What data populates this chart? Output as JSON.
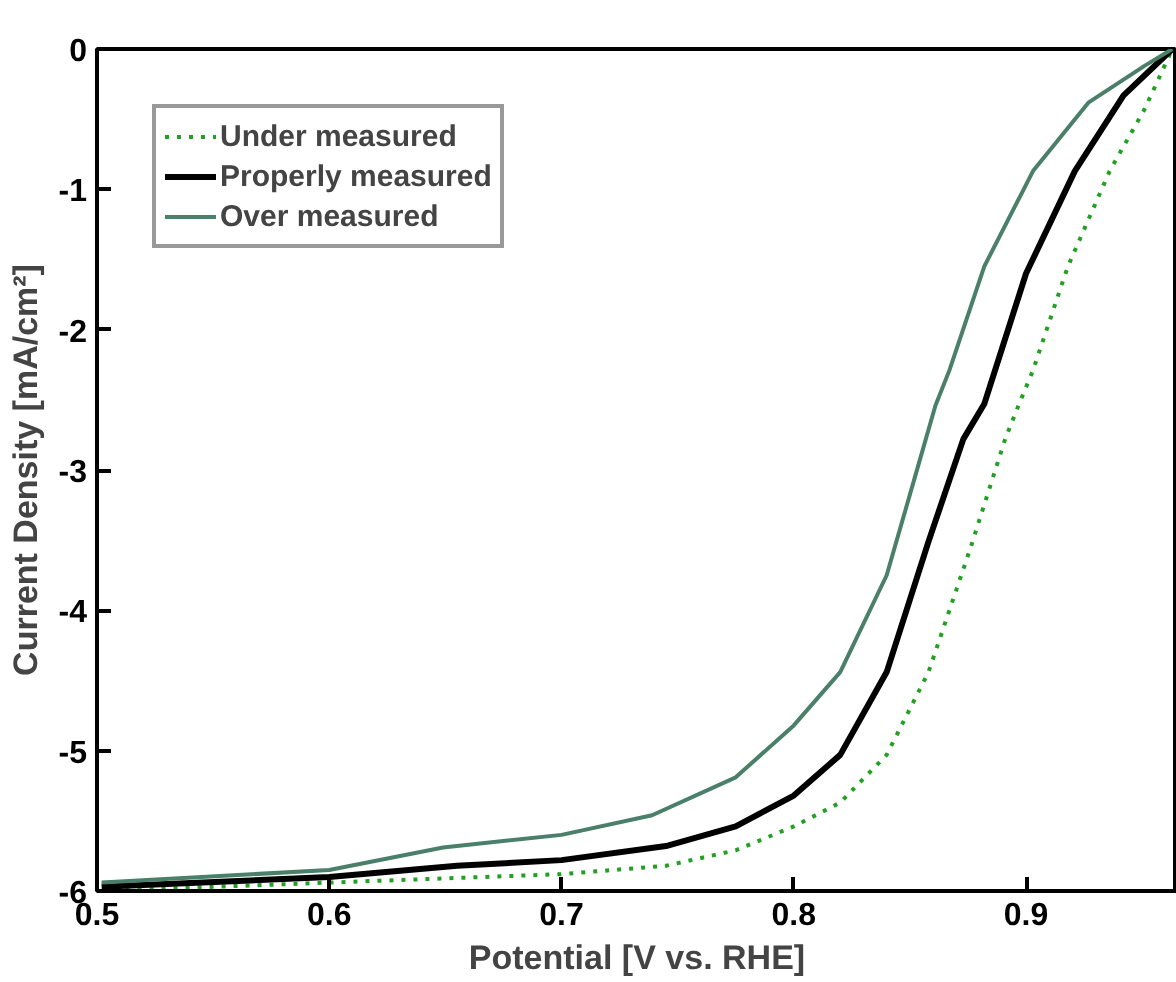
{
  "chart_data": {
    "type": "line",
    "xlabel": "Potential [V vs. RHE]",
    "ylabel": "Current Density [mA/cm²]",
    "xlim": [
      0.5,
      0.965
    ],
    "ylim": [
      -6,
      0
    ],
    "xticks": [
      0.5,
      0.6,
      0.7,
      0.8,
      0.9
    ],
    "yticks": [
      -6,
      -5,
      -4,
      -3,
      -2,
      -1,
      0
    ],
    "grid": false,
    "legend": "top left",
    "marker": "none",
    "series": [
      {
        "name": "Under measured",
        "color": "#22a022",
        "line_style": "dotted",
        "x": [
          0.502,
          0.6,
          0.7,
          0.745,
          0.775,
          0.8,
          0.82,
          0.84,
          0.858,
          0.876,
          0.891,
          0.897,
          0.903,
          0.918,
          0.936,
          0.951,
          0.963
        ],
        "values": [
          -6.0,
          -5.94,
          -5.88,
          -5.82,
          -5.71,
          -5.54,
          -5.37,
          -5.03,
          -4.44,
          -3.56,
          -2.78,
          -2.53,
          -2.29,
          -1.55,
          -0.87,
          -0.43,
          0
        ]
      },
      {
        "name": "Properly measured",
        "color": "#000000",
        "line_style": "solid",
        "x": [
          0.502,
          0.6,
          0.655,
          0.7,
          0.745,
          0.775,
          0.8,
          0.82,
          0.84,
          0.858,
          0.873,
          0.882,
          0.9,
          0.921,
          0.942,
          0.963
        ],
        "values": [
          -5.97,
          -5.9,
          -5.82,
          -5.78,
          -5.68,
          -5.54,
          -5.32,
          -5.03,
          -4.44,
          -3.51,
          -2.78,
          -2.53,
          -1.6,
          -0.87,
          -0.33,
          0
        ]
      },
      {
        "name": "Over measured",
        "color": "#4a7f6a",
        "line_style": "solid",
        "x": [
          0.502,
          0.6,
          0.649,
          0.7,
          0.739,
          0.775,
          0.8,
          0.82,
          0.84,
          0.852,
          0.861,
          0.867,
          0.882,
          0.903,
          0.927,
          0.951,
          0.963
        ],
        "values": [
          -5.94,
          -5.85,
          -5.69,
          -5.6,
          -5.46,
          -5.19,
          -4.82,
          -4.44,
          -3.75,
          -3.06,
          -2.54,
          -2.29,
          -1.55,
          -0.87,
          -0.38,
          -0.12,
          0
        ]
      }
    ]
  }
}
